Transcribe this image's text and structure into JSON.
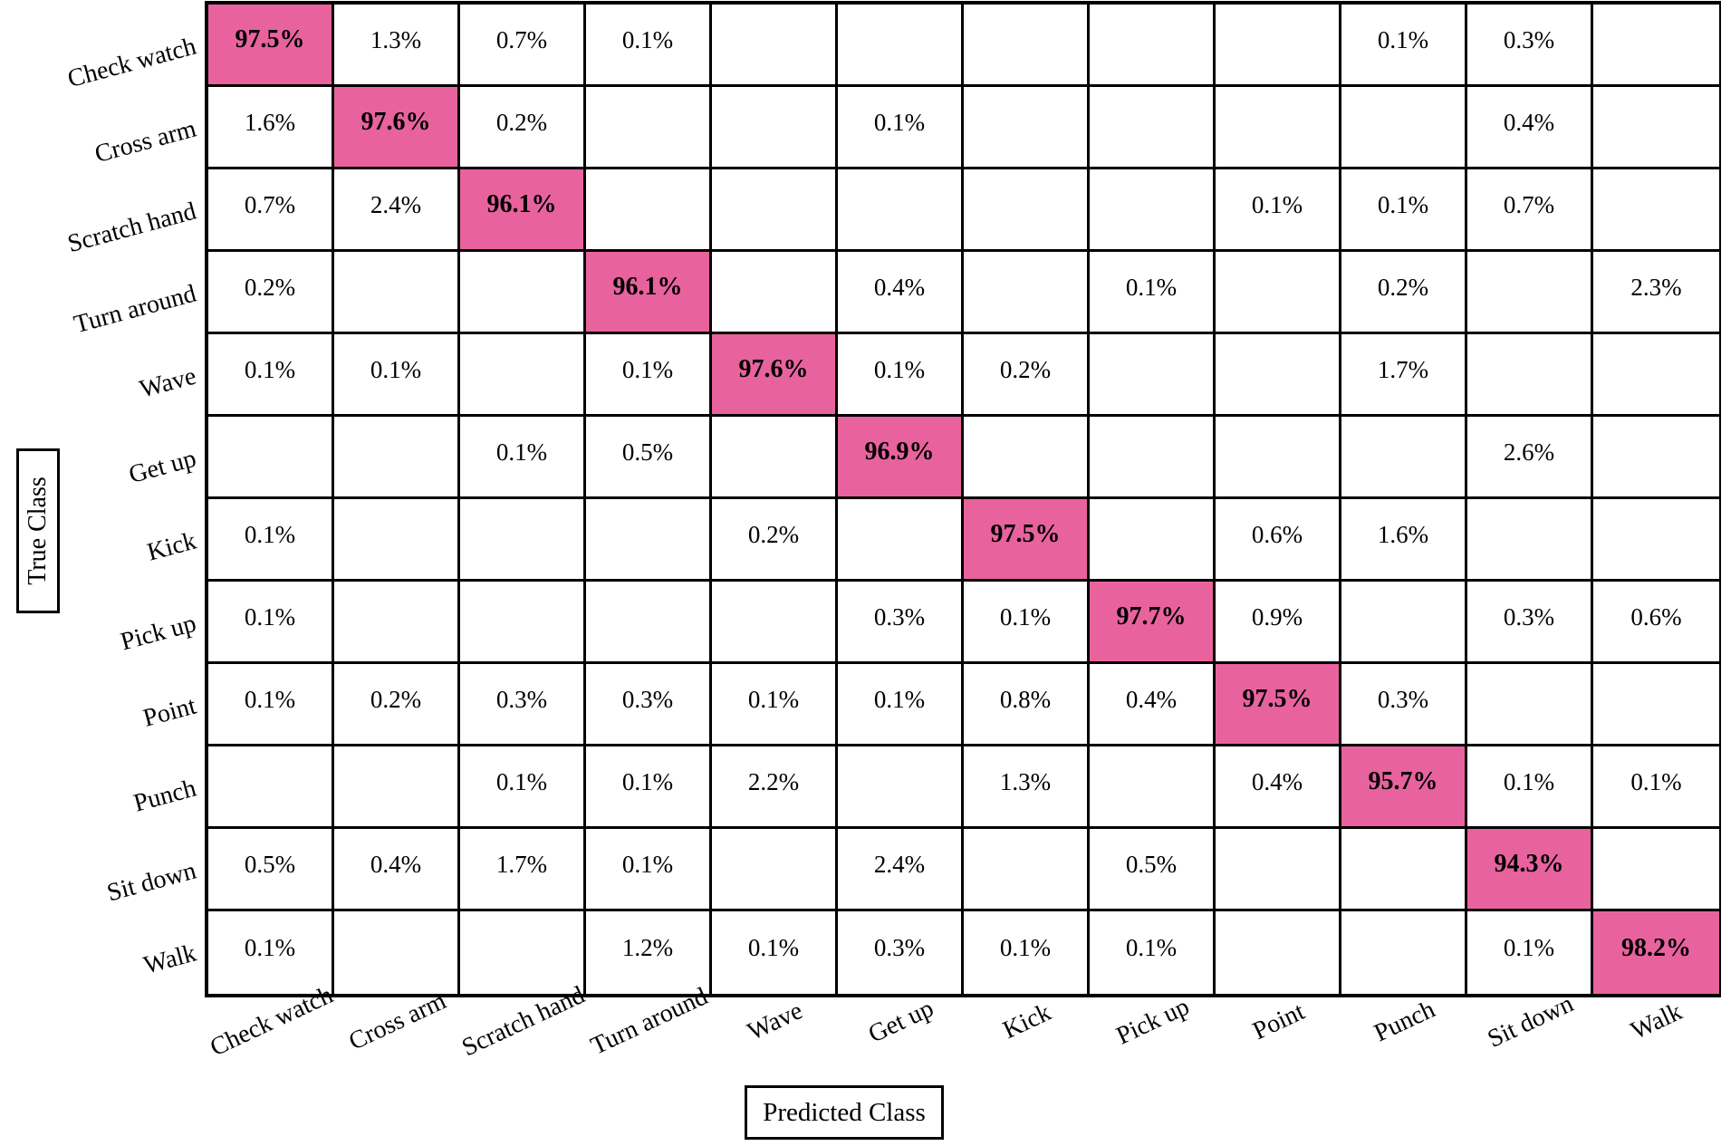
{
  "chart_data": {
    "type": "heatmap",
    "title": "",
    "xlabel": "Predicted Class",
    "ylabel": "True Class",
    "unit": "%",
    "x_categories": [
      "Check watch",
      "Cross arm",
      "Scratch hand",
      "Turn around",
      "Wave",
      "Get up",
      "Kick",
      "Pick up",
      "Point",
      "Punch",
      "Sit down",
      "Walk"
    ],
    "y_categories": [
      "Check watch",
      "Cross arm",
      "Scratch hand",
      "Turn around",
      "Wave",
      "Get up",
      "Kick",
      "Pick up",
      "Point",
      "Punch",
      "Sit down",
      "Walk"
    ],
    "diagonal_highlight_color": "#e8639e",
    "grid_line_color": "#000000",
    "cell_text_color": "#000000",
    "matrix_percent": [
      [
        97.5,
        1.3,
        0.7,
        0.1,
        null,
        null,
        null,
        null,
        null,
        0.1,
        0.3,
        null
      ],
      [
        1.6,
        97.6,
        0.2,
        null,
        null,
        0.1,
        null,
        null,
        null,
        null,
        0.4,
        null
      ],
      [
        0.7,
        2.4,
        96.1,
        null,
        null,
        null,
        null,
        null,
        0.1,
        0.1,
        0.7,
        null
      ],
      [
        0.2,
        null,
        null,
        96.1,
        null,
        0.4,
        null,
        0.1,
        null,
        0.2,
        null,
        2.3
      ],
      [
        0.1,
        0.1,
        null,
        0.1,
        97.6,
        0.1,
        0.2,
        null,
        null,
        1.7,
        null,
        null
      ],
      [
        null,
        null,
        0.1,
        0.5,
        null,
        96.9,
        null,
        null,
        null,
        null,
        2.6,
        null
      ],
      [
        0.1,
        null,
        null,
        null,
        0.2,
        null,
        97.5,
        null,
        0.6,
        1.6,
        null,
        null
      ],
      [
        0.1,
        null,
        null,
        null,
        null,
        0.3,
        0.1,
        97.7,
        0.9,
        null,
        0.3,
        0.6
      ],
      [
        0.1,
        0.2,
        0.3,
        0.3,
        0.1,
        0.1,
        0.8,
        0.4,
        97.5,
        0.3,
        null,
        null
      ],
      [
        null,
        null,
        0.1,
        0.1,
        2.2,
        null,
        1.3,
        null,
        0.4,
        95.7,
        0.1,
        0.1
      ],
      [
        0.5,
        0.4,
        1.7,
        0.1,
        null,
        2.4,
        null,
        0.5,
        null,
        null,
        94.3,
        null
      ],
      [
        0.1,
        null,
        null,
        1.2,
        0.1,
        0.3,
        0.1,
        0.1,
        null,
        null,
        0.1,
        98.2
      ]
    ]
  }
}
